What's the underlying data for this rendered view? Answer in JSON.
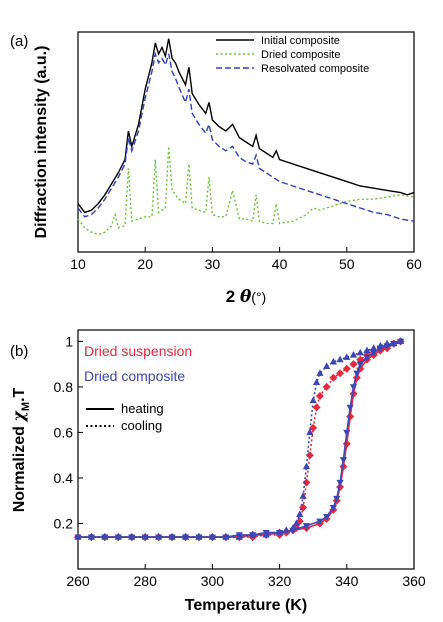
{
  "chart_data": [
    {
      "panel_label": "(a)",
      "type": "line",
      "xlabel_prefix": "2 ",
      "xlabel_theta": "θ",
      "xlabel_suffix": "(°)",
      "ylabel": "Diffraction intensity (a.u.)",
      "xlim": [
        10,
        60
      ],
      "x_ticks": [
        10,
        20,
        30,
        40,
        50,
        60
      ],
      "x_tick_labels": [
        "10",
        "20",
        "30",
        "40",
        "50",
        "60"
      ],
      "legend_position": "top-right",
      "series": [
        {
          "name": "Initial composite",
          "color": "#000000",
          "dash": "solid",
          "x": [
            10,
            11,
            12,
            13,
            14,
            15,
            16,
            17,
            17.5,
            18,
            19,
            20,
            21,
            21.5,
            22,
            22.5,
            23,
            23.5,
            24,
            24.5,
            25,
            26,
            26.5,
            27,
            28,
            29,
            29.5,
            30,
            31,
            32,
            33,
            34,
            35,
            36,
            36.5,
            37,
            38,
            39,
            39.5,
            40,
            42,
            44,
            46,
            48,
            50,
            52,
            54,
            56,
            58,
            59,
            60
          ],
          "y": [
            0.22,
            0.18,
            0.19,
            0.22,
            0.26,
            0.31,
            0.36,
            0.42,
            0.55,
            0.48,
            0.58,
            0.74,
            0.86,
            0.95,
            0.9,
            0.93,
            0.89,
            0.97,
            0.88,
            0.86,
            0.82,
            0.76,
            0.84,
            0.72,
            0.67,
            0.63,
            0.68,
            0.6,
            0.57,
            0.55,
            0.58,
            0.52,
            0.5,
            0.48,
            0.53,
            0.47,
            0.45,
            0.43,
            0.46,
            0.42,
            0.4,
            0.38,
            0.36,
            0.34,
            0.32,
            0.3,
            0.29,
            0.28,
            0.27,
            0.26,
            0.27
          ]
        },
        {
          "name": "Dried composite",
          "color": "#6cbf3a",
          "dash": "dotted",
          "x": [
            10,
            11,
            12,
            13,
            14,
            15,
            15.5,
            16,
            17,
            17.5,
            18,
            19,
            20,
            21,
            21.5,
            22,
            23,
            23.5,
            24,
            25,
            26,
            26.5,
            27,
            28,
            29,
            29.5,
            30,
            31,
            32,
            33,
            34,
            35,
            36,
            36.5,
            37,
            38,
            39,
            39.5,
            40,
            42,
            44,
            45,
            46,
            48,
            50,
            52,
            54,
            56,
            58,
            60
          ],
          "y": [
            0.15,
            0.11,
            0.09,
            0.08,
            0.09,
            0.12,
            0.17,
            0.11,
            0.12,
            0.38,
            0.14,
            0.15,
            0.16,
            0.16,
            0.42,
            0.18,
            0.2,
            0.48,
            0.28,
            0.24,
            0.22,
            0.4,
            0.2,
            0.19,
            0.18,
            0.34,
            0.17,
            0.16,
            0.16,
            0.28,
            0.15,
            0.15,
            0.14,
            0.26,
            0.14,
            0.13,
            0.13,
            0.22,
            0.13,
            0.14,
            0.17,
            0.2,
            0.19,
            0.21,
            0.23,
            0.24,
            0.24,
            0.25,
            0.26,
            0.25
          ]
        },
        {
          "name": "Resolvated composite",
          "color": "#2f3fbf",
          "dash": "dashed",
          "x": [
            10,
            11,
            12,
            13,
            14,
            15,
            16,
            17,
            17.5,
            18,
            19,
            20,
            21,
            21.5,
            22,
            22.5,
            23,
            23.5,
            24,
            24.5,
            25,
            26,
            26.5,
            27,
            28,
            29,
            29.5,
            30,
            31,
            32,
            33,
            34,
            35,
            36,
            36.5,
            37,
            38,
            39,
            40,
            42,
            44,
            46,
            48,
            50,
            52,
            54,
            56,
            58,
            60
          ],
          "y": [
            0.2,
            0.16,
            0.17,
            0.2,
            0.24,
            0.29,
            0.34,
            0.4,
            0.52,
            0.46,
            0.55,
            0.7,
            0.82,
            0.9,
            0.86,
            0.88,
            0.85,
            0.9,
            0.82,
            0.79,
            0.75,
            0.68,
            0.74,
            0.63,
            0.58,
            0.54,
            0.58,
            0.51,
            0.48,
            0.46,
            0.48,
            0.43,
            0.41,
            0.4,
            0.44,
            0.38,
            0.36,
            0.34,
            0.32,
            0.3,
            0.28,
            0.26,
            0.24,
            0.22,
            0.2,
            0.18,
            0.17,
            0.15,
            0.14
          ]
        }
      ]
    },
    {
      "panel_label": "(b)",
      "type": "line",
      "xlabel": "Temperature (K)",
      "ylabel_prefix": "Normalized ",
      "ylabel_chi": "χ",
      "ylabel_sub": "M",
      "ylabel_suffix": ".T",
      "xlim": [
        260,
        360
      ],
      "ylim": [
        0.0,
        1.05
      ],
      "x_ticks": [
        260,
        280,
        300,
        320,
        340,
        360
      ],
      "x_tick_labels": [
        "260",
        "280",
        "300",
        "320",
        "340",
        "360"
      ],
      "y_ticks": [
        0.2,
        0.4,
        0.6,
        0.8,
        1.0
      ],
      "y_tick_labels": [
        "0.2",
        "0.4",
        "0.6",
        "0.8",
        "1"
      ],
      "legend": [
        {
          "text": "Dried suspension",
          "color": "#e8283c"
        },
        {
          "text": "Dried composite",
          "color": "#3c46b4"
        }
      ],
      "style_legend": [
        {
          "text": "heating",
          "dash": "solid"
        },
        {
          "text": "cooling",
          "dash": "dotted"
        }
      ],
      "series": [
        {
          "name": "Dried suspension",
          "mode": "heating",
          "color": "#e8283c",
          "dash": "solid",
          "marker": "diamond",
          "x": [
            260,
            264,
            268,
            272,
            276,
            280,
            284,
            288,
            292,
            296,
            300,
            304,
            308,
            312,
            316,
            320,
            324,
            328,
            332,
            334,
            336,
            337,
            338,
            339,
            340,
            341,
            342,
            343,
            344,
            346,
            348,
            350,
            352,
            354,
            356
          ],
          "y": [
            0.14,
            0.14,
            0.14,
            0.14,
            0.14,
            0.14,
            0.14,
            0.14,
            0.14,
            0.14,
            0.14,
            0.14,
            0.14,
            0.15,
            0.15,
            0.16,
            0.17,
            0.18,
            0.2,
            0.22,
            0.26,
            0.3,
            0.36,
            0.45,
            0.55,
            0.67,
            0.77,
            0.84,
            0.88,
            0.92,
            0.94,
            0.96,
            0.97,
            0.99,
            1.0
          ]
        },
        {
          "name": "Dried suspension",
          "mode": "cooling",
          "color": "#e8283c",
          "dash": "dotted",
          "marker": "diamond",
          "x": [
            356,
            354,
            352,
            350,
            348,
            346,
            344,
            342,
            340,
            338,
            336,
            334,
            332,
            331,
            330,
            329,
            328,
            327,
            326,
            325,
            324,
            322,
            320,
            316,
            312,
            308,
            304,
            300,
            296,
            292,
            288,
            284,
            280,
            276,
            272,
            268,
            264,
            260
          ],
          "y": [
            1.0,
            0.99,
            0.98,
            0.97,
            0.96,
            0.94,
            0.92,
            0.9,
            0.88,
            0.86,
            0.84,
            0.8,
            0.76,
            0.71,
            0.62,
            0.5,
            0.38,
            0.27,
            0.21,
            0.18,
            0.17,
            0.16,
            0.15,
            0.15,
            0.14,
            0.14,
            0.14,
            0.14,
            0.14,
            0.14,
            0.14,
            0.14,
            0.14,
            0.14,
            0.14,
            0.14,
            0.14,
            0.14
          ]
        },
        {
          "name": "Dried composite",
          "mode": "heating",
          "color": "#3c46b4",
          "dash": "solid",
          "marker": "triangle-down",
          "x": [
            260,
            264,
            268,
            272,
            276,
            280,
            284,
            288,
            292,
            296,
            300,
            304,
            308,
            312,
            316,
            320,
            324,
            328,
            332,
            334,
            336,
            337,
            338,
            339,
            340,
            341,
            342,
            343,
            344,
            346,
            348,
            350,
            352,
            354,
            356
          ],
          "y": [
            0.14,
            0.14,
            0.14,
            0.14,
            0.14,
            0.14,
            0.14,
            0.14,
            0.14,
            0.14,
            0.14,
            0.14,
            0.15,
            0.15,
            0.16,
            0.16,
            0.17,
            0.19,
            0.21,
            0.23,
            0.27,
            0.31,
            0.38,
            0.48,
            0.6,
            0.71,
            0.8,
            0.86,
            0.9,
            0.93,
            0.95,
            0.97,
            0.98,
            0.99,
            1.0
          ]
        },
        {
          "name": "Dried composite",
          "mode": "cooling",
          "color": "#3c46b4",
          "dash": "dotted",
          "marker": "triangle-up",
          "x": [
            356,
            354,
            352,
            350,
            348,
            346,
            344,
            342,
            340,
            338,
            336,
            334,
            332,
            331,
            330,
            329,
            328,
            327,
            326,
            325,
            324,
            322,
            320,
            316,
            312,
            308,
            304,
            300,
            296,
            292,
            288,
            284,
            280,
            276,
            272,
            268,
            264,
            260
          ],
          "y": [
            1.0,
            0.99,
            0.99,
            0.98,
            0.97,
            0.96,
            0.95,
            0.94,
            0.93,
            0.92,
            0.91,
            0.89,
            0.86,
            0.82,
            0.74,
            0.6,
            0.45,
            0.32,
            0.24,
            0.2,
            0.18,
            0.17,
            0.16,
            0.15,
            0.15,
            0.14,
            0.14,
            0.14,
            0.14,
            0.14,
            0.14,
            0.14,
            0.14,
            0.14,
            0.14,
            0.14,
            0.14,
            0.14
          ]
        }
      ]
    }
  ]
}
